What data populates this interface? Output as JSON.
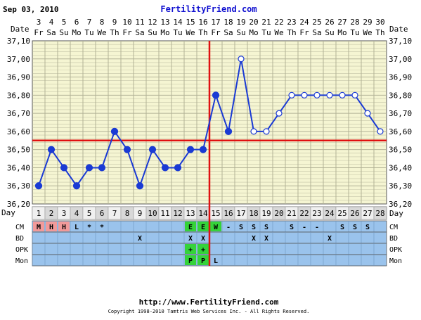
{
  "header": {
    "date": "Sep 03, 2010",
    "site": "FertilityFriend.com"
  },
  "footer": {
    "url": "http://www.FertilityFriend.com",
    "copyright": "Copyright 1998-2010 Tamtris Web Services Inc. - All Rights Reserved."
  },
  "labels": {
    "date_row": "Date",
    "day_row": "Day",
    "rows": [
      "CM",
      "BD",
      "OPK",
      "Mon"
    ]
  },
  "colors": {
    "plot_bg": "#f5f5d2",
    "grid": "#b2b296",
    "line": "#1a3ad4",
    "coverline": "#e01010",
    "row_bg": "#9ac3ec",
    "day_cell": "#e6e6e6",
    "cm_red": "#f29a9a",
    "green": "#35d33a"
  },
  "chart_data": {
    "type": "line",
    "title": "",
    "dates": [
      "3",
      "4",
      "5",
      "6",
      "7",
      "8",
      "9",
      "10",
      "11",
      "12",
      "13",
      "14",
      "15",
      "16",
      "17",
      "18",
      "19",
      "20",
      "21",
      "22",
      "23",
      "24",
      "25",
      "26",
      "27",
      "28",
      "29",
      "30"
    ],
    "weekdays": [
      "Fr",
      "Sa",
      "Su",
      "Mo",
      "Tu",
      "We",
      "Th",
      "Fr",
      "Sa",
      "Su",
      "Mo",
      "Tu",
      "We",
      "Th",
      "Fr",
      "Sa",
      "Su",
      "Mo",
      "Tu",
      "We",
      "Th",
      "Fr",
      "Sa",
      "Su",
      "Mo",
      "Tu",
      "We",
      "Th"
    ],
    "cycle_days": [
      1,
      2,
      3,
      4,
      5,
      6,
      7,
      8,
      9,
      10,
      11,
      12,
      13,
      14,
      15,
      16,
      17,
      18,
      19,
      20,
      21,
      22,
      23,
      24,
      25,
      26,
      27,
      28
    ],
    "series": [
      {
        "values": [
          36.3,
          36.5,
          36.4,
          36.3,
          36.4,
          36.4,
          36.6,
          36.5,
          36.3,
          36.5,
          36.4,
          36.4,
          36.5,
          36.5,
          36.8,
          36.6,
          37.0,
          36.6,
          36.6,
          36.7,
          36.8,
          36.8,
          36.8,
          36.8,
          36.8,
          36.8,
          36.7,
          36.6
        ],
        "open_markers": [
          false,
          false,
          false,
          false,
          false,
          false,
          false,
          false,
          false,
          false,
          false,
          false,
          false,
          false,
          false,
          false,
          true,
          true,
          true,
          true,
          true,
          true,
          true,
          true,
          true,
          true,
          true,
          true
        ]
      }
    ],
    "ylim": [
      36.2,
      37.1
    ],
    "yticks": [
      "36,20",
      "36,30",
      "36,40",
      "36,50",
      "36,60",
      "36,70",
      "36,80",
      "36,90",
      "37,00",
      "37,10"
    ],
    "coverline": 36.55,
    "ovulation_day": 14,
    "grid": true,
    "rows": {
      "CM": [
        "M",
        "H",
        "H",
        "L",
        "*",
        "*",
        "",
        "",
        "",
        "",
        "",
        "",
        "E",
        "E",
        "W",
        "-",
        "S",
        "S",
        "S",
        "",
        "S",
        "-",
        "-",
        "",
        "S",
        "S",
        "S",
        ""
      ],
      "BD": [
        "",
        "",
        "",
        "",
        "",
        "",
        "",
        "",
        "X",
        "",
        "",
        "",
        "X",
        "X",
        "",
        "",
        "",
        "X",
        "X",
        "",
        "",
        "",
        "",
        "X",
        "",
        "",
        "",
        ""
      ],
      "OPK": [
        "",
        "",
        "",
        "",
        "",
        "",
        "",
        "",
        "",
        "",
        "",
        "",
        "+",
        "+",
        "",
        "",
        "",
        "",
        "",
        "",
        "",
        "",
        "",
        "",
        "",
        "",
        "",
        ""
      ],
      "Mon": [
        "",
        "",
        "",
        "",
        "",
        "",
        "",
        "",
        "",
        "",
        "",
        "",
        "P",
        "P",
        "L",
        "",
        "",
        "",
        "",
        "",
        "",
        "",
        "",
        "",
        "",
        "",
        "",
        ""
      ]
    },
    "cm_red_cells": [
      1,
      2,
      3
    ],
    "green_cells": {
      "CM": [
        13,
        14,
        15
      ],
      "OPK": [
        13,
        14
      ],
      "Mon": [
        13,
        14
      ]
    }
  }
}
